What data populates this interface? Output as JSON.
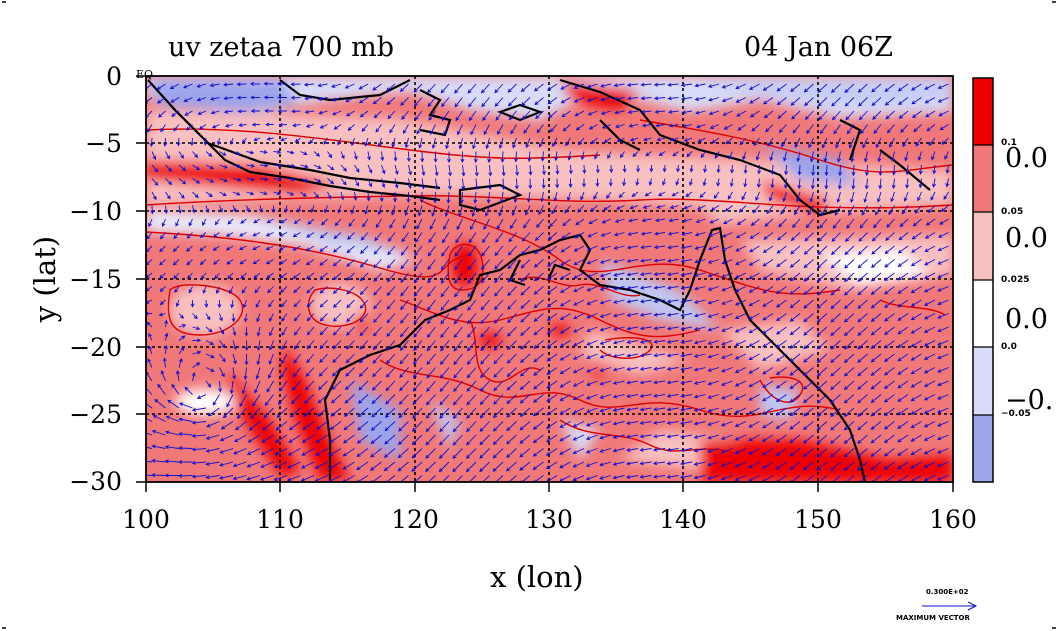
{
  "title": {
    "left": "uv zetaa 700 mb",
    "right": "04 Jan 06Z"
  },
  "axes": {
    "xlabel": "x (lon)",
    "ylabel": "y (lat)",
    "xticks": [
      "100",
      "110",
      "120",
      "130",
      "140",
      "150",
      "160"
    ],
    "yticks": [
      "0",
      "−5",
      "−10",
      "−15",
      "−20",
      "−25",
      "−30"
    ],
    "x_range": [
      100,
      160
    ],
    "y_range": [
      -30,
      0
    ],
    "equator_marker": "EQ"
  },
  "colorbar": {
    "big_labels": [
      "0.0",
      "0.0",
      "0.0",
      "−0."
    ],
    "small_labels": [
      "0.1",
      "0.05",
      "0.025",
      "0.0",
      "−0.05"
    ],
    "colors": [
      "#ee0000",
      "#f07878",
      "#f8c0c0",
      "#ffffff",
      "#d8dcf8",
      "#9ca4ec"
    ]
  },
  "max_vector": {
    "value": "0.300E+02",
    "label": "MAXIMUM VECTOR"
  },
  "colors": {
    "strong_pos": "#ee0000",
    "mid_pos": "#f07878",
    "weak_pos": "#f8c0c0",
    "weak_neg": "#d8dcf8",
    "mid_neg": "#9ca4ec",
    "vector": "#1010d0",
    "contour": "#dd0000"
  }
}
